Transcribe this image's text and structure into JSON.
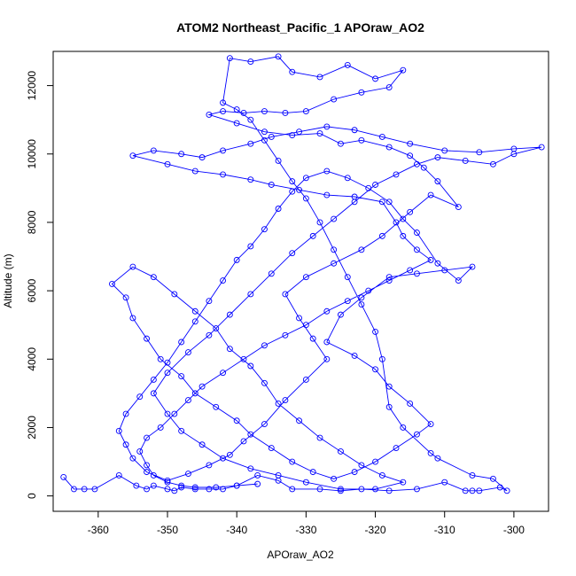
{
  "chart_data": {
    "type": "line",
    "title": "ATOM2 Northeast_Pacific_1 APOraw_AO2",
    "xlabel": "APOraw_AO2",
    "ylabel": "Altitude (m)",
    "xlim": [
      -366.5,
      -295
    ],
    "ylim": [
      -450,
      13000
    ],
    "xticks": [
      -360,
      -350,
      -340,
      -330,
      -320,
      -310,
      -300
    ],
    "yticks": [
      0,
      2000,
      4000,
      6000,
      8000,
      10000,
      12000
    ],
    "grid": false,
    "legend": "none",
    "series_color": "#0000ff",
    "marker": "open-circle",
    "series": [
      {
        "values": [
          [
            -365,
            550
          ],
          [
            -363.5,
            200
          ],
          [
            -362,
            200
          ],
          [
            -360.5,
            200
          ],
          [
            -357,
            600
          ],
          [
            -354.5,
            300
          ],
          [
            -353,
            200
          ],
          [
            -352,
            300
          ],
          [
            -350,
            200
          ],
          [
            -349,
            150
          ],
          [
            -348,
            250
          ],
          [
            -346,
            200
          ],
          [
            -344,
            200
          ],
          [
            -342,
            200
          ],
          [
            -340,
            300
          ],
          [
            -337,
            600
          ],
          [
            -334,
            450
          ],
          [
            -332,
            200
          ],
          [
            -328,
            200
          ],
          [
            -325,
            150
          ],
          [
            -322,
            200
          ],
          [
            -318,
            150
          ],
          [
            -314,
            200
          ],
          [
            -310,
            400
          ],
          [
            -307,
            150
          ],
          [
            -306,
            150
          ],
          [
            -305,
            150
          ],
          [
            -302,
            250
          ],
          [
            -301,
            150
          ],
          [
            -303,
            500
          ],
          [
            -306,
            600
          ],
          [
            -311,
            1100
          ],
          [
            -312,
            1250
          ],
          [
            -316,
            2000
          ],
          [
            -318,
            2600
          ],
          [
            -319,
            4000
          ],
          [
            -320,
            4800
          ],
          [
            -322,
            5600
          ],
          [
            -324,
            6400
          ],
          [
            -326,
            7200
          ],
          [
            -328,
            8000
          ],
          [
            -330,
            8700
          ],
          [
            -332,
            9200
          ],
          [
            -334,
            9800
          ],
          [
            -336,
            10400
          ],
          [
            -338,
            11000
          ],
          [
            -340,
            11300
          ],
          [
            -342,
            11500
          ],
          [
            -341,
            12800
          ],
          [
            -338,
            12700
          ],
          [
            -334,
            12850
          ],
          [
            -332,
            12400
          ],
          [
            -328,
            12250
          ],
          [
            -324,
            12600
          ],
          [
            -320,
            12200
          ],
          [
            -316,
            12450
          ],
          [
            -318,
            11950
          ],
          [
            -322,
            11800
          ],
          [
            -326,
            11600
          ],
          [
            -330,
            11250
          ],
          [
            -333,
            11200
          ],
          [
            -336,
            11250
          ],
          [
            -339,
            11200
          ],
          [
            -342,
            11250
          ],
          [
            -344,
            11150
          ],
          [
            -340,
            10900
          ],
          [
            -336,
            10650
          ],
          [
            -332,
            10550
          ],
          [
            -328,
            10600
          ],
          [
            -325,
            10300
          ],
          [
            -322,
            10400
          ],
          [
            -318,
            10200
          ],
          [
            -315,
            9950
          ],
          [
            -313,
            9600
          ],
          [
            -311,
            9200
          ],
          [
            -308,
            8450
          ],
          [
            -312,
            8800
          ],
          [
            -315,
            8300
          ],
          [
            -319,
            7600
          ],
          [
            -322,
            7200
          ],
          [
            -326,
            6800
          ],
          [
            -330,
            6400
          ],
          [
            -333,
            5900
          ],
          [
            -331,
            5200
          ],
          [
            -329,
            4600
          ],
          [
            -327,
            4000
          ],
          [
            -330,
            3400
          ],
          [
            -333,
            2800
          ],
          [
            -336,
            2100
          ],
          [
            -339,
            1600
          ],
          [
            -341,
            1200
          ],
          [
            -344,
            900
          ],
          [
            -347,
            650
          ],
          [
            -350,
            450
          ],
          [
            -353,
            700
          ],
          [
            -355,
            1100
          ],
          [
            -356,
            1500
          ],
          [
            -357,
            1900
          ],
          [
            -356,
            2400
          ],
          [
            -354,
            2900
          ],
          [
            -352,
            3400
          ],
          [
            -350,
            3900
          ],
          [
            -348,
            4500
          ],
          [
            -346,
            5100
          ],
          [
            -344,
            5700
          ],
          [
            -342,
            6300
          ],
          [
            -340,
            6900
          ],
          [
            -338,
            7300
          ],
          [
            -336,
            7800
          ],
          [
            -334,
            8400
          ],
          [
            -332,
            8900
          ],
          [
            -330,
            9300
          ],
          [
            -327,
            9500
          ],
          [
            -324,
            9300
          ],
          [
            -321,
            9000
          ],
          [
            -318,
            8600
          ],
          [
            -316,
            8100
          ],
          [
            -314,
            7700
          ],
          [
            -311,
            6800
          ],
          [
            -308,
            6300
          ],
          [
            -306,
            6700
          ],
          [
            -310,
            6600
          ],
          [
            -314,
            6500
          ],
          [
            -318,
            6400
          ],
          [
            -322,
            5800
          ],
          [
            -325,
            5300
          ],
          [
            -327,
            4500
          ],
          [
            -323,
            4100
          ],
          [
            -320,
            3700
          ],
          [
            -318,
            3200
          ],
          [
            -315,
            2700
          ],
          [
            -312,
            2100
          ],
          [
            -314,
            1800
          ],
          [
            -317,
            1400
          ],
          [
            -320,
            1000
          ],
          [
            -323,
            700
          ],
          [
            -326,
            500
          ],
          [
            -329,
            700
          ],
          [
            -332,
            1000
          ],
          [
            -335,
            1400
          ],
          [
            -338,
            1800
          ],
          [
            -340,
            2200
          ],
          [
            -343,
            2600
          ],
          [
            -346,
            3000
          ],
          [
            -348,
            3500
          ],
          [
            -351,
            4000
          ],
          [
            -353,
            4600
          ],
          [
            -355,
            5200
          ],
          [
            -356,
            5800
          ],
          [
            -358,
            6200
          ],
          [
            -355,
            6700
          ],
          [
            -352,
            6400
          ],
          [
            -349,
            5900
          ],
          [
            -346,
            5400
          ],
          [
            -343,
            4900
          ],
          [
            -341,
            4300
          ],
          [
            -338,
            3800
          ],
          [
            -336,
            3300
          ],
          [
            -334,
            2700
          ],
          [
            -331,
            2200
          ],
          [
            -328,
            1700
          ],
          [
            -325,
            1300
          ],
          [
            -322,
            900
          ],
          [
            -319,
            600
          ],
          [
            -316,
            400
          ],
          [
            -320,
            200
          ],
          [
            -325,
            200
          ],
          [
            -330,
            400
          ],
          [
            -334,
            600
          ],
          [
            -338,
            800
          ],
          [
            -342,
            1100
          ],
          [
            -345,
            1500
          ],
          [
            -348,
            1900
          ],
          [
            -350,
            2400
          ],
          [
            -352,
            3000
          ],
          [
            -350,
            3600
          ],
          [
            -347,
            4200
          ],
          [
            -344,
            4700
          ],
          [
            -341,
            5300
          ],
          [
            -338,
            5900
          ],
          [
            -335,
            6500
          ],
          [
            -332,
            7100
          ],
          [
            -329,
            7600
          ],
          [
            -326,
            8100
          ],
          [
            -323,
            8600
          ],
          [
            -320,
            9100
          ],
          [
            -317,
            9400
          ],
          [
            -314,
            9700
          ],
          [
            -311,
            9900
          ],
          [
            -307,
            9800
          ],
          [
            -303,
            9700
          ],
          [
            -300,
            10000
          ],
          [
            -296,
            10200
          ],
          [
            -300,
            10150
          ],
          [
            -305,
            10050
          ],
          [
            -310,
            10100
          ],
          [
            -315,
            10300
          ],
          [
            -319,
            10500
          ],
          [
            -323,
            10700
          ],
          [
            -327,
            10800
          ],
          [
            -331,
            10650
          ],
          [
            -335,
            10500
          ],
          [
            -338,
            10300
          ],
          [
            -342,
            10100
          ],
          [
            -345,
            9900
          ],
          [
            -348,
            10000
          ],
          [
            -352,
            10100
          ],
          [
            -355,
            9950
          ],
          [
            -350,
            9700
          ],
          [
            -346,
            9500
          ],
          [
            -342,
            9400
          ],
          [
            -338,
            9250
          ],
          [
            -335,
            9100
          ],
          [
            -331,
            8950
          ],
          [
            -327,
            8800
          ],
          [
            -323,
            8750
          ],
          [
            -319,
            8600
          ],
          [
            -317,
            8000
          ],
          [
            -316,
            7600
          ],
          [
            -314,
            7200
          ],
          [
            -312,
            6900
          ],
          [
            -315,
            6600
          ],
          [
            -318,
            6300
          ],
          [
            -321,
            6000
          ],
          [
            -324,
            5700
          ],
          [
            -327,
            5400
          ],
          [
            -330,
            5000
          ],
          [
            -333,
            4700
          ],
          [
            -336,
            4400
          ],
          [
            -339,
            4000
          ],
          [
            -342,
            3600
          ],
          [
            -345,
            3200
          ],
          [
            -347,
            2800
          ],
          [
            -349,
            2400
          ],
          [
            -351,
            2000
          ],
          [
            -353,
            1700
          ],
          [
            -354,
            1300
          ],
          [
            -353,
            900
          ],
          [
            -352,
            600
          ],
          [
            -350,
            400
          ],
          [
            -348,
            300
          ],
          [
            -346,
            250
          ],
          [
            -343,
            250
          ],
          [
            -340,
            300
          ],
          [
            -337,
            350
          ]
        ]
      }
    ]
  }
}
